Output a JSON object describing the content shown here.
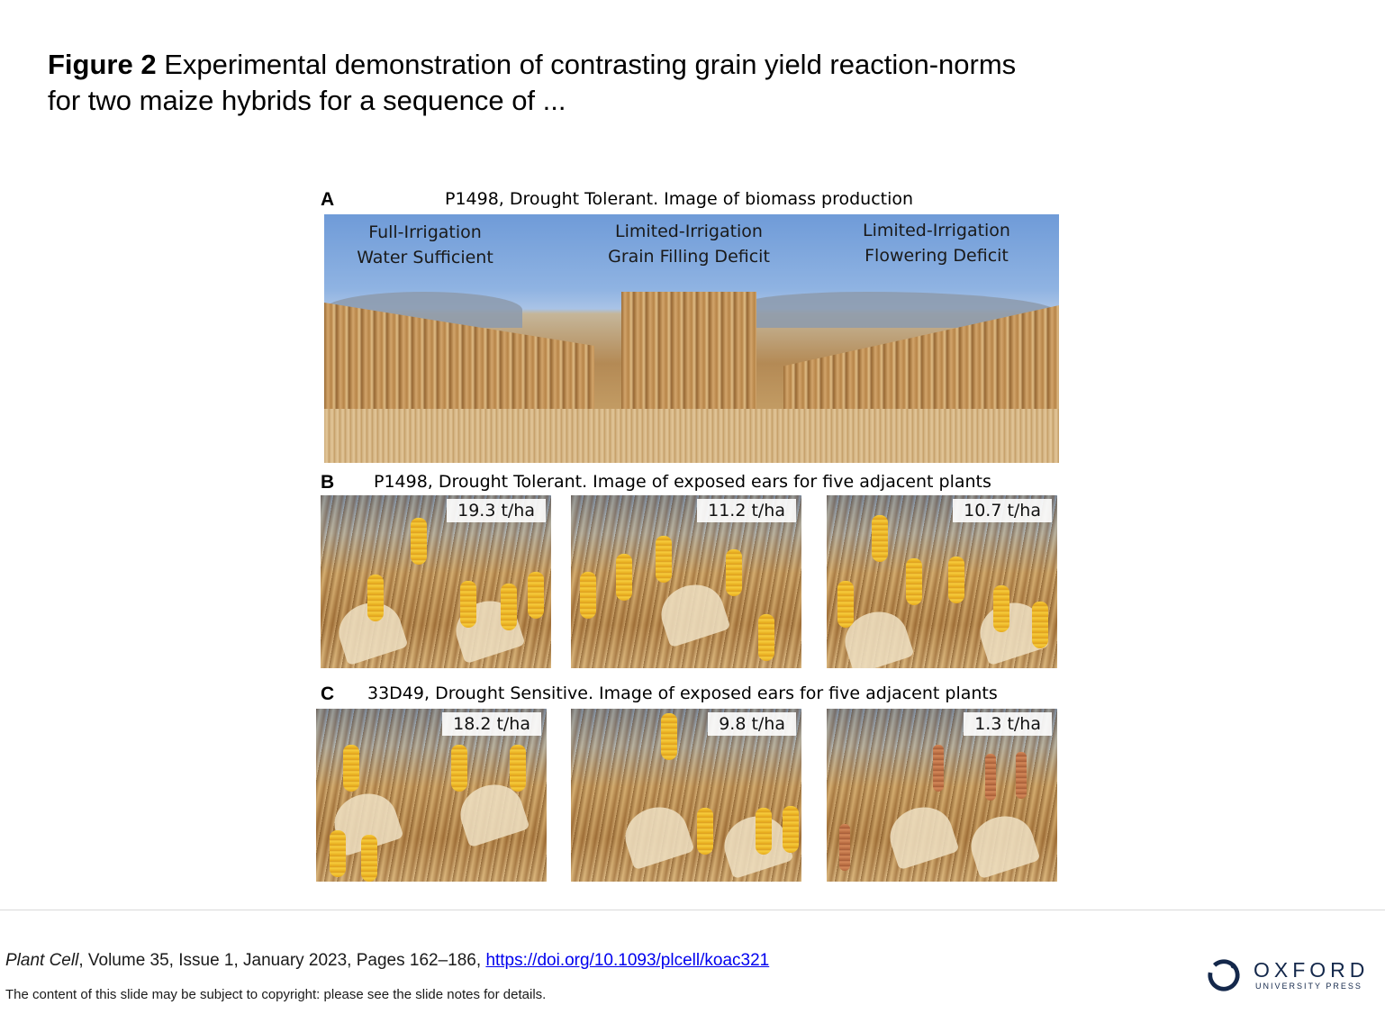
{
  "header": {
    "figure_label": "Figure 2",
    "title_text": " Experimental demonstration of contrasting grain yield reaction-norms for two maize hybrids for a sequence of ..."
  },
  "figure": {
    "panel_a": {
      "letter": "A",
      "caption": "P1498, Drought Tolerant. Image of biomass production",
      "labels": [
        {
          "line1": "Full-Irrigation",
          "line2": "Water Sufficient"
        },
        {
          "line1": "Limited-Irrigation",
          "line2": "Grain Filling Deficit"
        },
        {
          "line1": "Limited-Irrigation",
          "line2": "Flowering Deficit"
        }
      ]
    },
    "panel_b": {
      "letter": "B",
      "caption": "P1498, Drought Tolerant. Image of exposed ears for five adjacent plants",
      "yields": [
        "19.3 t/ha",
        "11.2 t/ha",
        "10.7 t/ha"
      ]
    },
    "panel_c": {
      "letter": "C",
      "caption": "33D49, Drought Sensitive. Image of exposed ears for five adjacent plants",
      "yields": [
        "18.2 t/ha",
        "9.8 t/ha",
        "1.3 t/ha"
      ]
    }
  },
  "footer": {
    "journal": "Plant Cell",
    "citation_rest": ", Volume 35, Issue 1, January 2023, Pages 162–186, ",
    "doi_link": "https://doi.org/10.1093/plcell/koac321",
    "notice": "The content of this slide may be subject to copyright: please see the slide notes for details.",
    "publisher_name": "OXFORD",
    "publisher_sub": "UNIVERSITY PRESS",
    "logo_icon": "oxford-university-press-logo"
  }
}
